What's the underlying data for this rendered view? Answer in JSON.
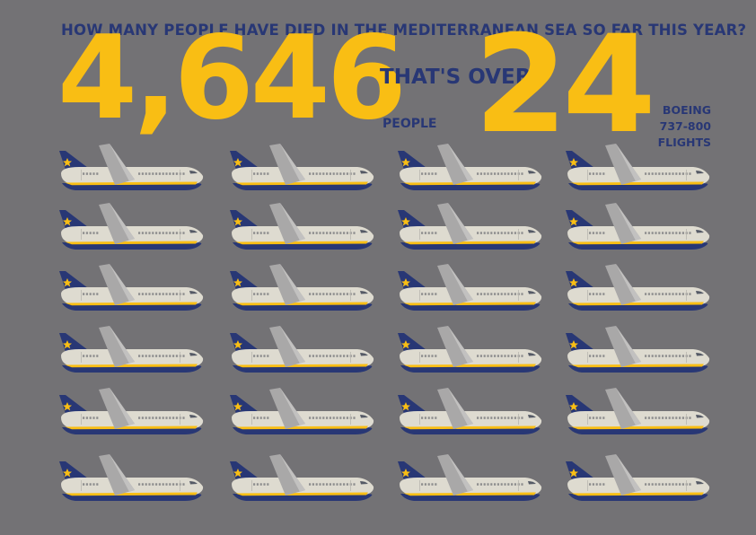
{
  "headline": {
    "question": "HOW MANY PEOPLE HAVE DIED IN THE MEDITERRANEAN SEA SO FAR THIS YEAR?",
    "death_count": "4,646",
    "people_label": "PEOPLE",
    "comparison_label": "THAT'S OVER",
    "flight_count": "24",
    "aircraft_label": [
      "BOEING",
      "737-800",
      "FLIGHTS"
    ]
  },
  "pictogram": {
    "icon": "airplane-icon",
    "count": 24,
    "rows": 6,
    "columns": 4
  },
  "colors": {
    "background": "#737275",
    "accent_yellow": "#f9be14",
    "navy": "#283775",
    "fuselage": "#dedbd0",
    "wing": "#a9a8a8"
  }
}
